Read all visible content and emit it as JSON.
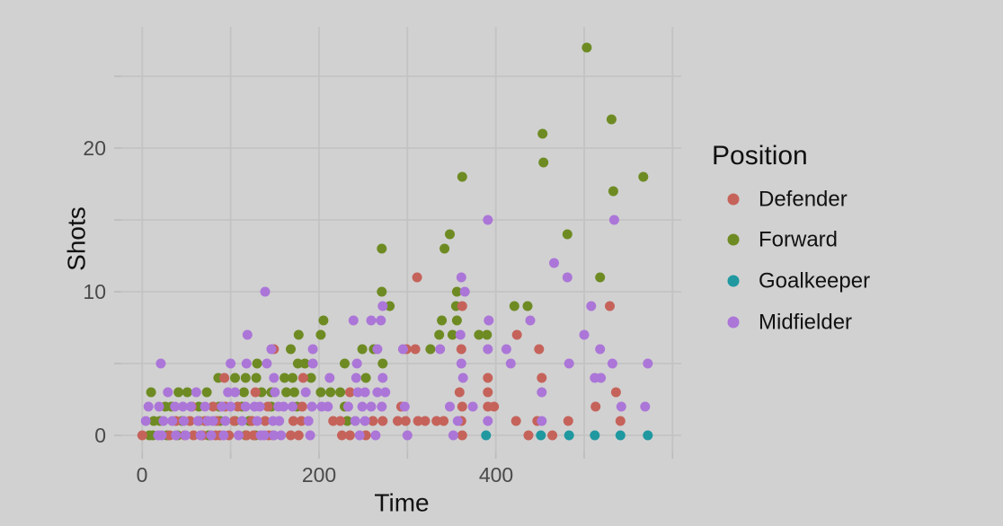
{
  "colors": {
    "background": "#d1d1d1",
    "gridline": "#c3c3c3",
    "tick": "#bdbdbd",
    "tick_label": "#4a4a4a",
    "axis_title": "#111111"
  },
  "chart_data": {
    "type": "scatter",
    "title": "",
    "xlabel": "Time",
    "ylabel": "Shots",
    "xlim": [
      -12,
      610
    ],
    "ylim": [
      -1,
      28.5
    ],
    "grid": true,
    "legend_position": "right",
    "legend_title": "Position",
    "x_gridlines": [
      0,
      100,
      200,
      300,
      400,
      500,
      600
    ],
    "y_gridlines": [
      0,
      5,
      10,
      15,
      20,
      25
    ],
    "xticks": [
      {
        "v": 0,
        "label": "0"
      },
      {
        "v": 200,
        "label": "200"
      },
      {
        "v": 400,
        "label": "400"
      }
    ],
    "yticks": [
      {
        "v": 0,
        "label": "0"
      },
      {
        "v": 10,
        "label": "10"
      },
      {
        "v": 20,
        "label": "20"
      }
    ],
    "series": [
      {
        "name": "Defender",
        "color": "#c5635b",
        "points": [
          [
            311,
            11
          ],
          [
            362,
            9
          ],
          [
            529,
            9
          ],
          [
            424,
            7
          ],
          [
            149,
            6
          ],
          [
            299,
            6
          ],
          [
            309,
            6
          ],
          [
            361,
            6
          ],
          [
            449,
            6
          ],
          [
            93,
            4
          ],
          [
            182,
            4
          ],
          [
            391,
            4
          ],
          [
            452,
            4
          ],
          [
            128,
            3
          ],
          [
            235,
            3
          ],
          [
            359,
            3
          ],
          [
            391,
            3
          ],
          [
            536,
            3
          ],
          [
            56,
            2
          ],
          [
            80,
            2
          ],
          [
            94,
            2
          ],
          [
            108,
            2
          ],
          [
            142,
            2
          ],
          [
            181,
            2
          ],
          [
            293,
            2
          ],
          [
            362,
            2
          ],
          [
            391,
            2
          ],
          [
            398,
            2
          ],
          [
            513,
            2
          ],
          [
            38,
            1
          ],
          [
            54,
            1
          ],
          [
            71,
            1
          ],
          [
            84,
            1
          ],
          [
            104,
            1
          ],
          [
            124,
            1
          ],
          [
            139,
            1
          ],
          [
            171,
            1
          ],
          [
            180,
            1
          ],
          [
            216,
            1
          ],
          [
            224,
            1
          ],
          [
            261,
            1
          ],
          [
            272,
            1
          ],
          [
            289,
            1
          ],
          [
            298,
            1
          ],
          [
            312,
            1
          ],
          [
            320,
            1
          ],
          [
            333,
            1
          ],
          [
            341,
            1
          ],
          [
            361,
            1
          ],
          [
            423,
            1
          ],
          [
            447,
            1
          ],
          [
            482,
            1
          ],
          [
            541,
            1
          ],
          [
            0,
            0
          ],
          [
            31,
            0
          ],
          [
            48,
            0
          ],
          [
            58,
            0
          ],
          [
            68,
            0
          ],
          [
            83,
            0
          ],
          [
            88,
            0
          ],
          [
            98,
            0
          ],
          [
            118,
            0
          ],
          [
            126,
            0
          ],
          [
            143,
            0
          ],
          [
            148,
            0
          ],
          [
            168,
            0
          ],
          [
            177,
            0
          ],
          [
            226,
            0
          ],
          [
            235,
            0
          ],
          [
            253,
            0
          ],
          [
            362,
            0
          ],
          [
            437,
            0
          ],
          [
            464,
            0
          ]
        ]
      },
      {
        "name": "Forward",
        "color": "#6e8b23",
        "points": [
          [
            503,
            27
          ],
          [
            531,
            22
          ],
          [
            453,
            21
          ],
          [
            454,
            19
          ],
          [
            362,
            18
          ],
          [
            567,
            18
          ],
          [
            533,
            17
          ],
          [
            348,
            14
          ],
          [
            481,
            14
          ],
          [
            271,
            13
          ],
          [
            342,
            13
          ],
          [
            518,
            11
          ],
          [
            271,
            10
          ],
          [
            356,
            10
          ],
          [
            280,
            9
          ],
          [
            355,
            9
          ],
          [
            421,
            9
          ],
          [
            436,
            9
          ],
          [
            205,
            8
          ],
          [
            339,
            8
          ],
          [
            356,
            8
          ],
          [
            177,
            7
          ],
          [
            202,
            7
          ],
          [
            336,
            7
          ],
          [
            351,
            7
          ],
          [
            381,
            7
          ],
          [
            390,
            7
          ],
          [
            168,
            6
          ],
          [
            249,
            6
          ],
          [
            262,
            6
          ],
          [
            326,
            6
          ],
          [
            130,
            5
          ],
          [
            176,
            5
          ],
          [
            184,
            5
          ],
          [
            229,
            5
          ],
          [
            272,
            5
          ],
          [
            86,
            4
          ],
          [
            105,
            4
          ],
          [
            117,
            4
          ],
          [
            129,
            4
          ],
          [
            161,
            4
          ],
          [
            170,
            4
          ],
          [
            191,
            4
          ],
          [
            253,
            4
          ],
          [
            10,
            3
          ],
          [
            41,
            3
          ],
          [
            51,
            3
          ],
          [
            73,
            3
          ],
          [
            115,
            3
          ],
          [
            135,
            3
          ],
          [
            146,
            3
          ],
          [
            163,
            3
          ],
          [
            172,
            3
          ],
          [
            202,
            3
          ],
          [
            213,
            3
          ],
          [
            224,
            3
          ],
          [
            26,
            2
          ],
          [
            33,
            2
          ],
          [
            64,
            2
          ],
          [
            87,
            2
          ],
          [
            113,
            2
          ],
          [
            146,
            2
          ],
          [
            175,
            2
          ],
          [
            229,
            2
          ],
          [
            13,
            1
          ],
          [
            20,
            1
          ],
          [
            45,
            1
          ],
          [
            64,
            1
          ],
          [
            88,
            1
          ],
          [
            105,
            1
          ],
          [
            121,
            1
          ],
          [
            232,
            1
          ],
          [
            8,
            0
          ],
          [
            12,
            0
          ],
          [
            28,
            0
          ],
          [
            40,
            0
          ],
          [
            75,
            0
          ],
          [
            117,
            0
          ],
          [
            128,
            0
          ]
        ]
      },
      {
        "name": "Goalkeeper",
        "color": "#1f98a0",
        "points": [
          [
            389,
            0
          ],
          [
            451,
            0
          ],
          [
            483,
            0
          ],
          [
            512,
            0
          ],
          [
            541,
            0
          ],
          [
            572,
            0
          ]
        ]
      },
      {
        "name": "Midfielder",
        "color": "#ab76d8",
        "points": [
          [
            391,
            15
          ],
          [
            534,
            15
          ],
          [
            466,
            12
          ],
          [
            361,
            11
          ],
          [
            481,
            11
          ],
          [
            139,
            10
          ],
          [
            365,
            10
          ],
          [
            272,
            9
          ],
          [
            508,
            9
          ],
          [
            239,
            8
          ],
          [
            259,
            8
          ],
          [
            270,
            8
          ],
          [
            392,
            8
          ],
          [
            439,
            8
          ],
          [
            119,
            7
          ],
          [
            360,
            7
          ],
          [
            500,
            7
          ],
          [
            146,
            6
          ],
          [
            193,
            6
          ],
          [
            266,
            6
          ],
          [
            295,
            6
          ],
          [
            337,
            6
          ],
          [
            391,
            6
          ],
          [
            412,
            6
          ],
          [
            518,
            6
          ],
          [
            21,
            5
          ],
          [
            100,
            5
          ],
          [
            118,
            5
          ],
          [
            141,
            5
          ],
          [
            193,
            5
          ],
          [
            243,
            5
          ],
          [
            361,
            5
          ],
          [
            417,
            5
          ],
          [
            483,
            5
          ],
          [
            532,
            5
          ],
          [
            572,
            5
          ],
          [
            149,
            4
          ],
          [
            212,
            4
          ],
          [
            242,
            4
          ],
          [
            272,
            4
          ],
          [
            363,
            4
          ],
          [
            512,
            4
          ],
          [
            519,
            4
          ],
          [
            29,
            3
          ],
          [
            61,
            3
          ],
          [
            97,
            3
          ],
          [
            105,
            3
          ],
          [
            150,
            3
          ],
          [
            185,
            3
          ],
          [
            244,
            3
          ],
          [
            252,
            3
          ],
          [
            266,
            3
          ],
          [
            275,
            3
          ],
          [
            452,
            3
          ],
          [
            7,
            2
          ],
          [
            19,
            2
          ],
          [
            37,
            2
          ],
          [
            46,
            2
          ],
          [
            55,
            2
          ],
          [
            71,
            2
          ],
          [
            90,
            2
          ],
          [
            100,
            2
          ],
          [
            117,
            2
          ],
          [
            127,
            2
          ],
          [
            133,
            2
          ],
          [
            154,
            2
          ],
          [
            160,
            2
          ],
          [
            170,
            2
          ],
          [
            192,
            2
          ],
          [
            203,
            2
          ],
          [
            210,
            2
          ],
          [
            233,
            2
          ],
          [
            249,
            2
          ],
          [
            259,
            2
          ],
          [
            271,
            2
          ],
          [
            297,
            2
          ],
          [
            348,
            2
          ],
          [
            374,
            2
          ],
          [
            542,
            2
          ],
          [
            569,
            2
          ],
          [
            4,
            1
          ],
          [
            24,
            1
          ],
          [
            34,
            1
          ],
          [
            47,
            1
          ],
          [
            63,
            1
          ],
          [
            74,
            1
          ],
          [
            80,
            1
          ],
          [
            94,
            1
          ],
          [
            113,
            1
          ],
          [
            130,
            1
          ],
          [
            148,
            1
          ],
          [
            155,
            1
          ],
          [
            188,
            1
          ],
          [
            241,
            1
          ],
          [
            252,
            1
          ],
          [
            357,
            1
          ],
          [
            391,
            1
          ],
          [
            452,
            1
          ],
          [
            18,
            0
          ],
          [
            22,
            0
          ],
          [
            38,
            0
          ],
          [
            49,
            0
          ],
          [
            66,
            0
          ],
          [
            78,
            0
          ],
          [
            92,
            0
          ],
          [
            109,
            0
          ],
          [
            134,
            0
          ],
          [
            138,
            0
          ],
          [
            149,
            0
          ],
          [
            157,
            0
          ],
          [
            190,
            0
          ],
          [
            246,
            0
          ],
          [
            264,
            0
          ],
          [
            300,
            0
          ],
          [
            352,
            0
          ]
        ]
      }
    ]
  },
  "legend": {
    "title": "Position",
    "entries": [
      {
        "label": "Defender"
      },
      {
        "label": "Forward"
      },
      {
        "label": "Goalkeeper"
      },
      {
        "label": "Midfielder"
      }
    ]
  }
}
